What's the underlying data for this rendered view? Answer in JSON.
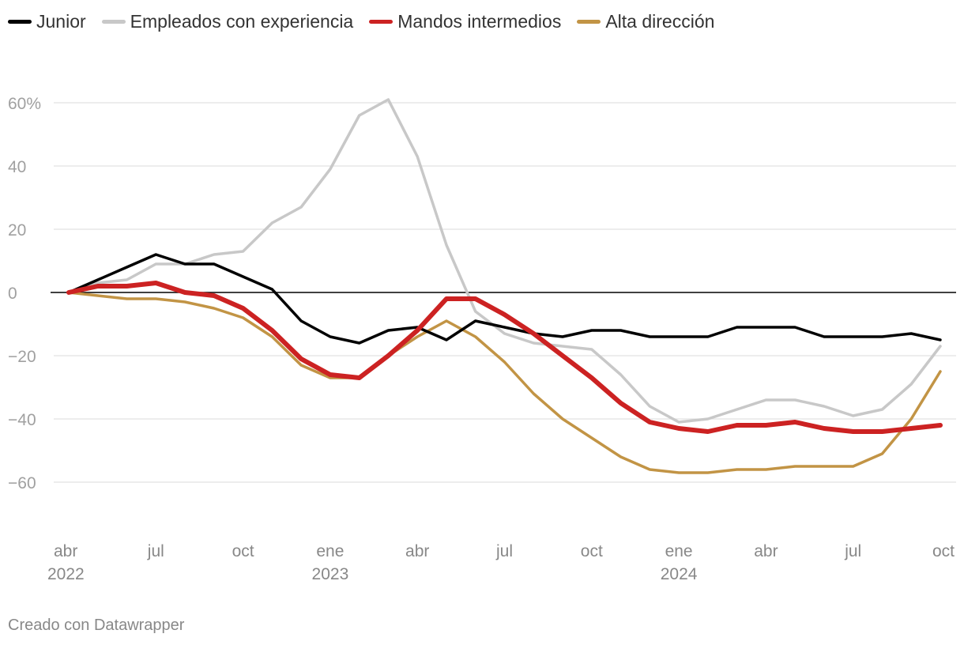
{
  "legend": [
    {
      "name": "Junior",
      "color": "#000000"
    },
    {
      "name": "Empleados con experiencia",
      "color": "#c8c8c8"
    },
    {
      "name": "Mandos intermedios",
      "color": "#cc2222"
    },
    {
      "name": "Alta dirección",
      "color": "#c29445"
    }
  ],
  "footer": {
    "credit": "Creado con Datawrapper"
  },
  "chart_data": {
    "type": "line",
    "title": "",
    "xlabel": "",
    "ylabel": "",
    "ylim": [
      -75,
      62
    ],
    "y_ticks": [
      {
        "value": 60,
        "label": "60%"
      },
      {
        "value": 40,
        "label": "40"
      },
      {
        "value": 20,
        "label": "20"
      },
      {
        "value": 0,
        "label": "0"
      },
      {
        "value": -20,
        "label": "−20"
      },
      {
        "value": -40,
        "label": "−40"
      },
      {
        "value": -60,
        "label": "−60"
      }
    ],
    "x_ticks": [
      {
        "index": 0,
        "label": "abr",
        "year": "2022"
      },
      {
        "index": 3,
        "label": "jul",
        "year": ""
      },
      {
        "index": 6,
        "label": "oct",
        "year": ""
      },
      {
        "index": 9,
        "label": "ene",
        "year": "2023"
      },
      {
        "index": 12,
        "label": "abr",
        "year": ""
      },
      {
        "index": 15,
        "label": "jul",
        "year": ""
      },
      {
        "index": 18,
        "label": "oct",
        "year": ""
      },
      {
        "index": 21,
        "label": "ene",
        "year": "2024"
      },
      {
        "index": 24,
        "label": "abr",
        "year": ""
      },
      {
        "index": 27,
        "label": "jul",
        "year": ""
      },
      {
        "index": 30,
        "label": "oct",
        "year": ""
      }
    ],
    "x": [
      "2022-04",
      "2022-05",
      "2022-06",
      "2022-07",
      "2022-08",
      "2022-09",
      "2022-10",
      "2022-11",
      "2022-12",
      "2023-01",
      "2023-02",
      "2023-03",
      "2023-04",
      "2023-05",
      "2023-06",
      "2023-07",
      "2023-08",
      "2023-09",
      "2023-10",
      "2023-11",
      "2023-12",
      "2024-01",
      "2024-02",
      "2024-03",
      "2024-04",
      "2024-05",
      "2024-06",
      "2024-07",
      "2024-08",
      "2024-09",
      "2024-10"
    ],
    "series": [
      {
        "name": "Empleados con experiencia",
        "color": "#c8c8c8",
        "width": 3.5,
        "values": [
          0,
          3,
          4,
          9,
          9,
          12,
          13,
          22,
          27,
          39,
          56,
          61,
          43,
          15,
          -6,
          -13,
          -16,
          -17,
          -18,
          -26,
          -36,
          -41,
          -40,
          -37,
          -34,
          -34,
          -36,
          -39,
          -37,
          -29,
          -17
        ]
      },
      {
        "name": "Alta dirección",
        "color": "#c29445",
        "width": 3.5,
        "values": [
          0,
          -1,
          -2,
          -2,
          -3,
          -5,
          -8,
          -14,
          -23,
          -27,
          -27,
          -20,
          -14,
          -9,
          -14,
          -22,
          -32,
          -40,
          -46,
          -52,
          -56,
          -57,
          -57,
          -56,
          -56,
          -55,
          -55,
          -55,
          -51,
          -40,
          -25
        ]
      },
      {
        "name": "Junior",
        "color": "#000000",
        "width": 3.5,
        "values": [
          0,
          4,
          8,
          12,
          9,
          9,
          5,
          1,
          -9,
          -14,
          -16,
          -12,
          -11,
          -15,
          -9,
          -11,
          -13,
          -14,
          -12,
          -12,
          -14,
          -14,
          -14,
          -11,
          -11,
          -11,
          -14,
          -14,
          -14,
          -13,
          -15
        ]
      },
      {
        "name": "Mandos intermedios",
        "color": "#cc2222",
        "width": 6,
        "values": [
          0,
          2,
          2,
          3,
          0,
          -1,
          -5,
          -12,
          -21,
          -26,
          -27,
          -20,
          -12,
          -2,
          -2,
          -7,
          -13,
          -20,
          -27,
          -35,
          -41,
          -43,
          -44,
          -42,
          -42,
          -41,
          -43,
          -44,
          -44,
          -43,
          -42
        ]
      }
    ]
  }
}
